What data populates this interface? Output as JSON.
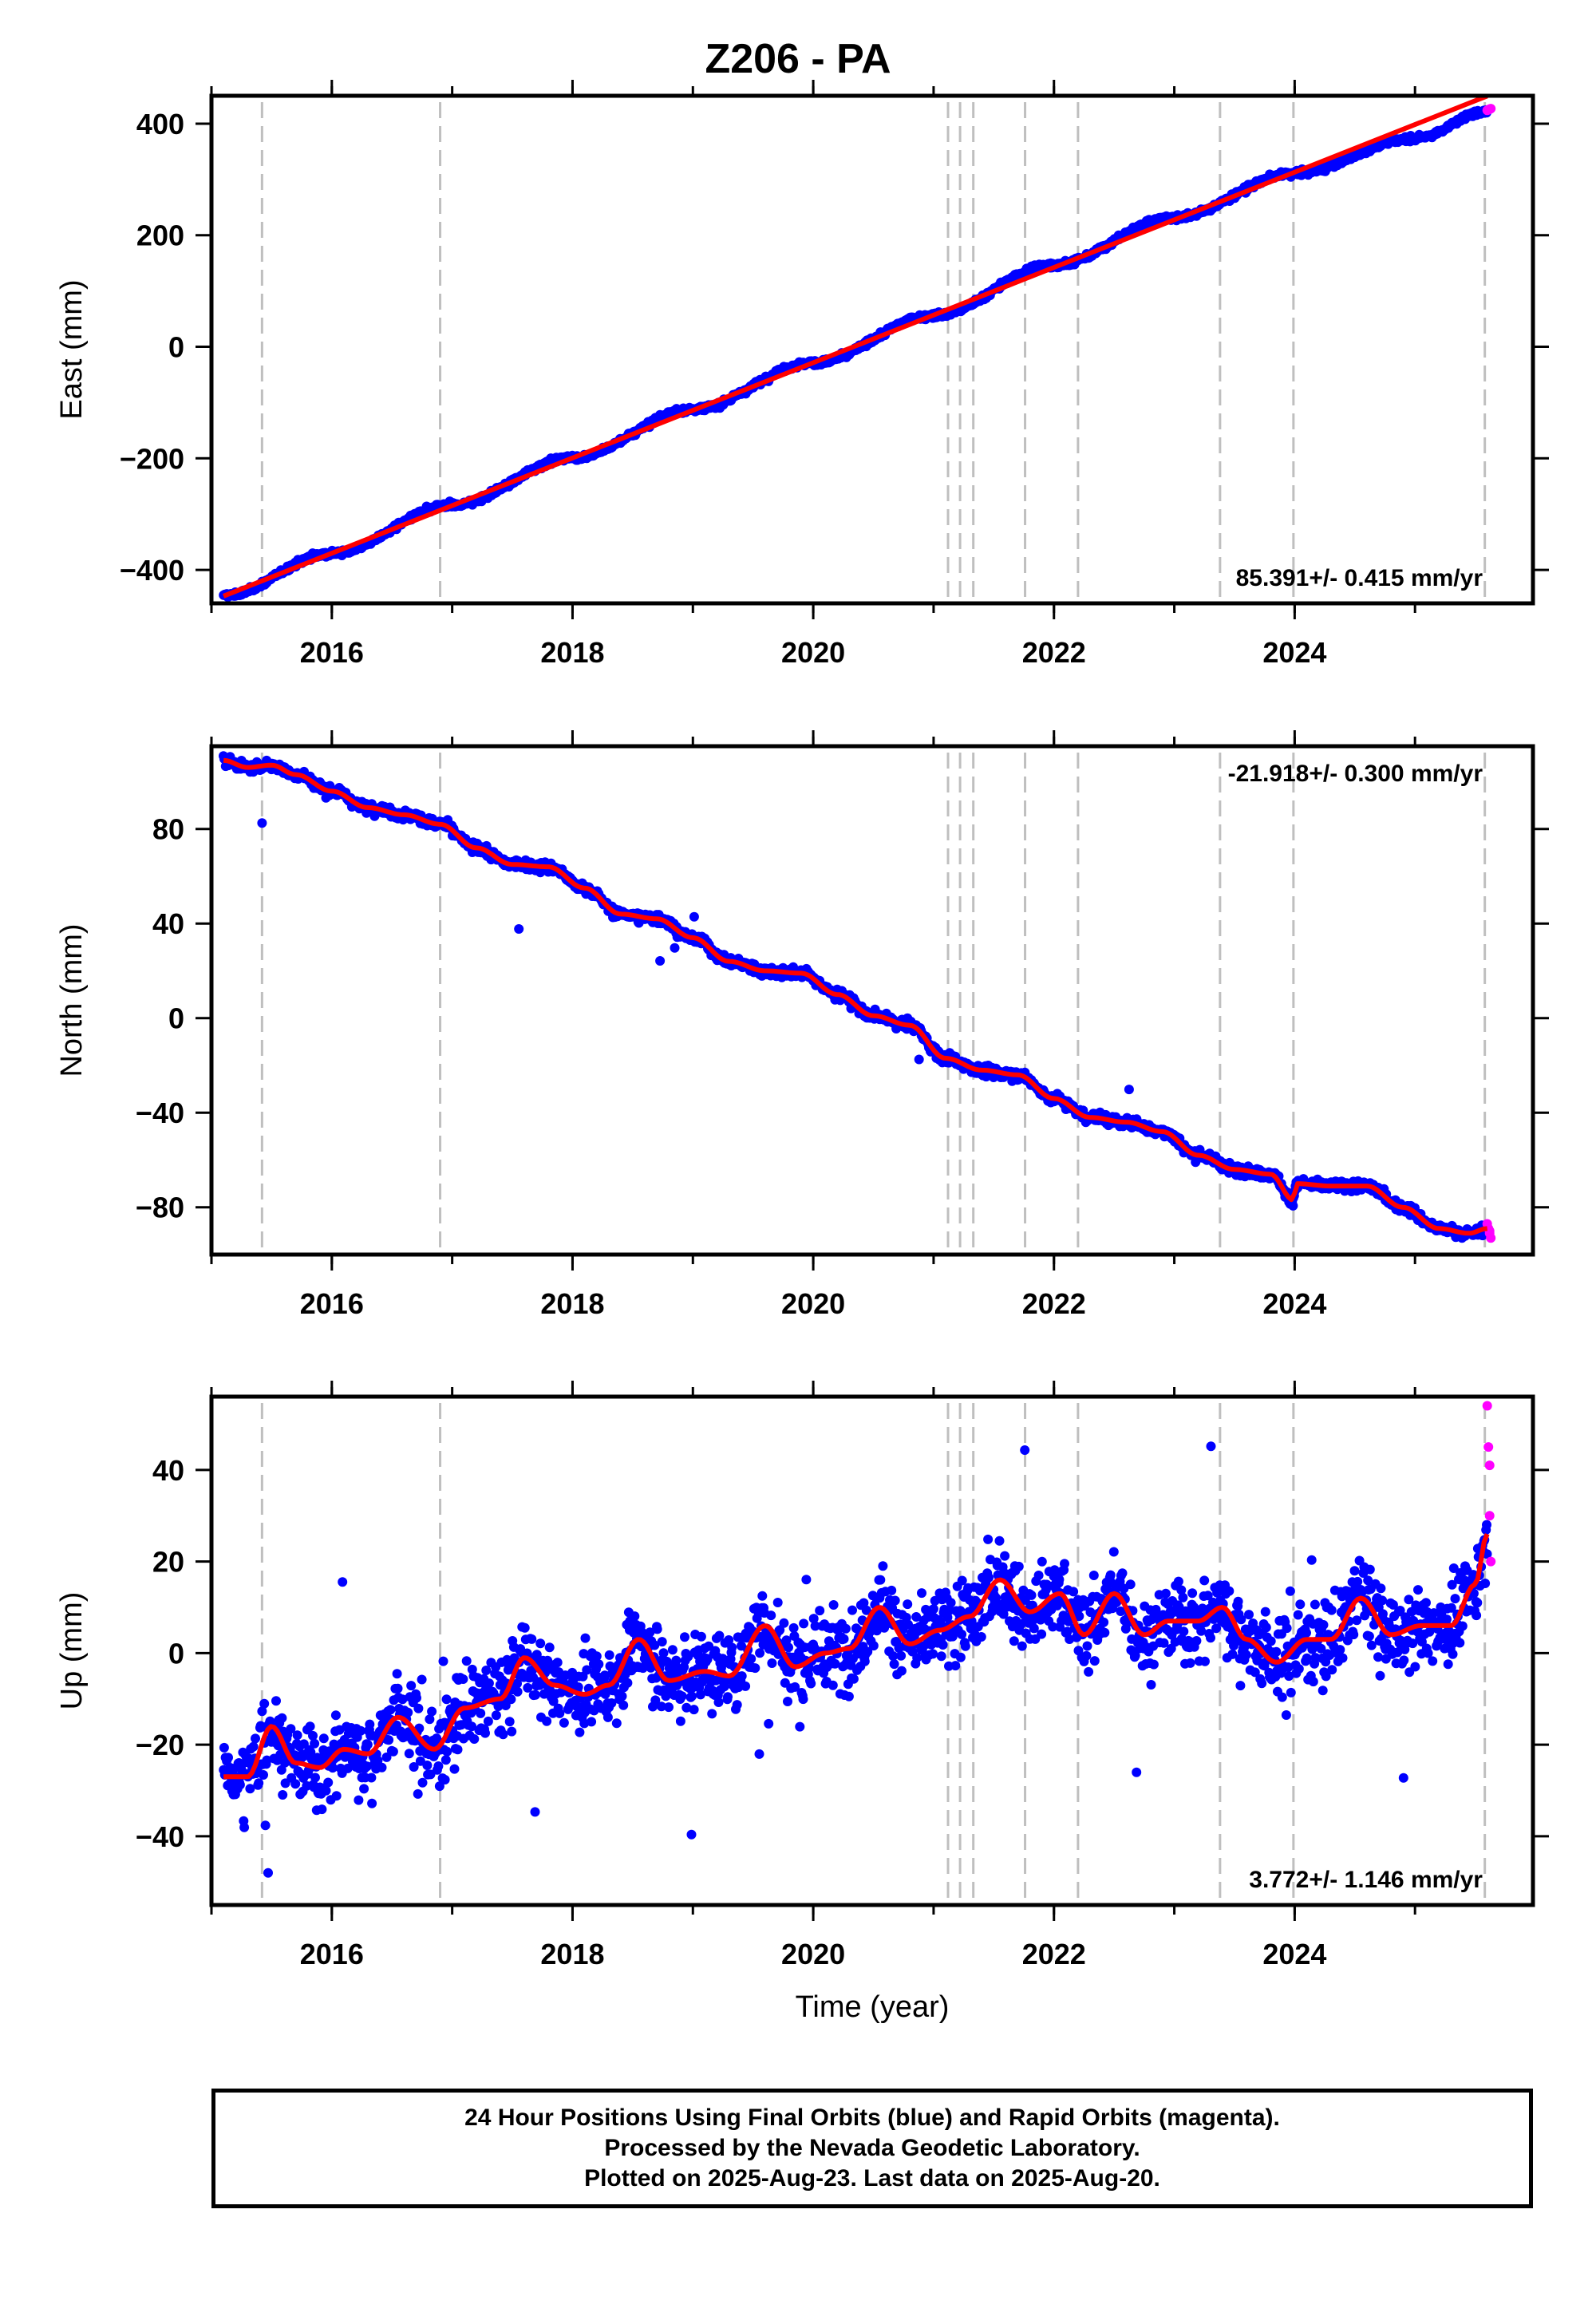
{
  "title": "Z206 - PA",
  "footer": {
    "line1": "24 Hour Positions Using Final Orbits (blue) and Rapid Orbits (magenta).",
    "line2": "Processed by the Nevada Geodetic Laboratory.",
    "line3": "Plotted on 2025-Aug-23. Last data on 2025-Aug-20."
  },
  "colors": {
    "final_orbits": "#0000ff",
    "rapid_orbits": "#ff00ff",
    "model_fit": "#ff0000",
    "event_lines": "#bfbfbf"
  },
  "chart_data": [
    {
      "type": "scatter",
      "ylabel": "East (mm)",
      "xlabel": "",
      "xlim": [
        2015.0,
        2025.98
      ],
      "ylim": [
        -460,
        450
      ],
      "xticks": [
        2016,
        2018,
        2020,
        2022,
        2024
      ],
      "xtick_labels": [
        "2016",
        "2018",
        "2020",
        "2022",
        "2024"
      ],
      "yticks": [
        -400,
        -200,
        0,
        200,
        400
      ],
      "ytick_labels": [
        "−400",
        "−200",
        "0",
        "200",
        "400"
      ],
      "rate_label": "85.391+/- 0.415 mm/yr",
      "rate_position": "bottom-right",
      "fit": {
        "start": [
          2015.1,
          -447
        ],
        "rate": 85.391
      },
      "series": [
        {
          "x": [
            2015.1,
            2016.0,
            2017.0,
            2018.0,
            2019.0,
            2020.0,
            2021.0,
            2022.0,
            2023.0,
            2024.0,
            2025.0,
            2025.6
          ],
          "y": [
            -447,
            -370,
            -284,
            -199,
            -112,
            -29,
            56,
            147,
            232,
            311,
            374,
            422
          ]
        }
      ]
    },
    {
      "type": "scatter",
      "ylabel": "North (mm)",
      "xlabel": "",
      "xlim": [
        2015.0,
        2025.98
      ],
      "ylim": [
        -100,
        115
      ],
      "xticks": [
        2016,
        2018,
        2020,
        2022,
        2024
      ],
      "xtick_labels": [
        "2016",
        "2018",
        "2020",
        "2022",
        "2024"
      ],
      "yticks": [
        -80,
        -40,
        0,
        40,
        80
      ],
      "ytick_labels": [
        "−80",
        "−40",
        "0",
        "40",
        "80"
      ],
      "rate_label": "-21.918+/- 0.300 mm/yr",
      "rate_position": "top-right",
      "series": [
        {
          "x": [
            2015.1,
            2015.3,
            2015.5,
            2015.7,
            2016.0,
            2016.3,
            2016.6,
            2016.9,
            2017.2,
            2017.5,
            2017.8,
            2018.1,
            2018.4,
            2018.7,
            2019.0,
            2019.3,
            2019.6,
            2019.9,
            2020.2,
            2020.5,
            2020.8,
            2021.1,
            2021.4,
            2021.7,
            2022.0,
            2022.3,
            2022.6,
            2022.9,
            2023.2,
            2023.5,
            2023.8,
            2023.99,
            2024.01,
            2024.3,
            2024.6,
            2024.9,
            2025.2,
            2025.45,
            2025.6
          ],
          "y": [
            109,
            106,
            107,
            103,
            96,
            89,
            86,
            82,
            72,
            65,
            64,
            55,
            44,
            42,
            34,
            24,
            20,
            19,
            10,
            1,
            -3,
            -17,
            -22,
            -24,
            -34,
            -42,
            -44,
            -48,
            -58,
            -64,
            -66,
            -77,
            -70,
            -71,
            -71,
            -80,
            -89,
            -91,
            -89
          ]
        }
      ]
    },
    {
      "type": "scatter",
      "ylabel": "Up (mm)",
      "xlabel": "Time (year)",
      "xlim": [
        2015.0,
        2025.98
      ],
      "ylim": [
        -55,
        56
      ],
      "xticks": [
        2016,
        2018,
        2020,
        2022,
        2024
      ],
      "xtick_labels": [
        "2016",
        "2018",
        "2020",
        "2022",
        "2024"
      ],
      "yticks": [
        -40,
        -20,
        0,
        20,
        40
      ],
      "ytick_labels": [
        "−40",
        "−20",
        "0",
        "20",
        "40"
      ],
      "rate_label": "3.772+/- 1.146 mm/yr",
      "rate_position": "bottom-right",
      "series": [
        {
          "x": [
            2015.1,
            2015.3,
            2015.5,
            2015.7,
            2015.9,
            2016.1,
            2016.3,
            2016.55,
            2016.85,
            2017.1,
            2017.4,
            2017.6,
            2017.85,
            2018.1,
            2018.3,
            2018.55,
            2018.8,
            2019.1,
            2019.3,
            2019.6,
            2019.85,
            2020.1,
            2020.3,
            2020.55,
            2020.8,
            2021.05,
            2021.3,
            2021.55,
            2021.8,
            2022.05,
            2022.25,
            2022.5,
            2022.75,
            2022.95,
            2023.2,
            2023.4,
            2023.6,
            2023.85,
            2024.1,
            2024.3,
            2024.55,
            2024.8,
            2025.05,
            2025.3,
            2025.5,
            2025.6
          ],
          "y": [
            -27,
            -27,
            -16,
            -24,
            -25,
            -21,
            -22,
            -14,
            -21,
            -12,
            -10,
            -1,
            -7,
            -9,
            -7,
            3,
            -6,
            -4,
            -5,
            6,
            -3,
            0,
            1,
            10,
            2,
            5,
            8,
            16,
            9,
            13,
            4,
            13,
            4,
            7,
            7,
            10,
            3,
            -2,
            3,
            3,
            12,
            4,
            6,
            6,
            15,
            26
          ]
        }
      ]
    }
  ],
  "event_lines": [
    2015.42,
    2016.9,
    2021.12,
    2021.22,
    2021.33,
    2021.76,
    2022.2,
    2023.38,
    2023.99,
    2025.58
  ],
  "rapid_orbit_points": {
    "x": [
      2025.6,
      2025.61,
      2025.62,
      2025.62,
      2025.63
    ],
    "east": [
      424,
      425,
      426,
      426,
      427
    ],
    "north": [
      -87,
      -89,
      -90,
      -91,
      -93
    ],
    "up": [
      54,
      45,
      41,
      30,
      20
    ]
  }
}
